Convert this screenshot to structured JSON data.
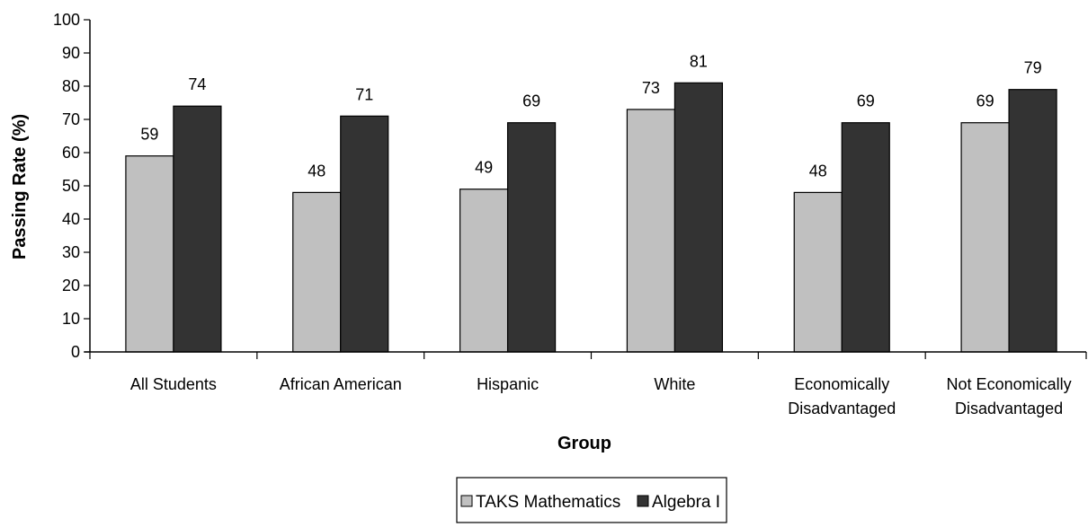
{
  "chart_data": {
    "type": "bar",
    "title": "",
    "xlabel": "Group",
    "ylabel": "Passing Rate (%)",
    "ylim": [
      0,
      100
    ],
    "ytick_step": 10,
    "grid": false,
    "legend_position": "bottom",
    "categories": [
      [
        "All Students"
      ],
      [
        "African American"
      ],
      [
        "Hispanic"
      ],
      [
        "White"
      ],
      [
        "Economically",
        "Disadvantaged"
      ],
      [
        "Not Economically",
        "Disadvantaged"
      ]
    ],
    "series": [
      {
        "name": "TAKS Mathematics",
        "color": "#c0c0c0",
        "values": [
          59,
          48,
          49,
          73,
          48,
          69
        ]
      },
      {
        "name": "Algebra I",
        "color": "#333333",
        "values": [
          74,
          71,
          69,
          81,
          69,
          79
        ]
      }
    ]
  }
}
